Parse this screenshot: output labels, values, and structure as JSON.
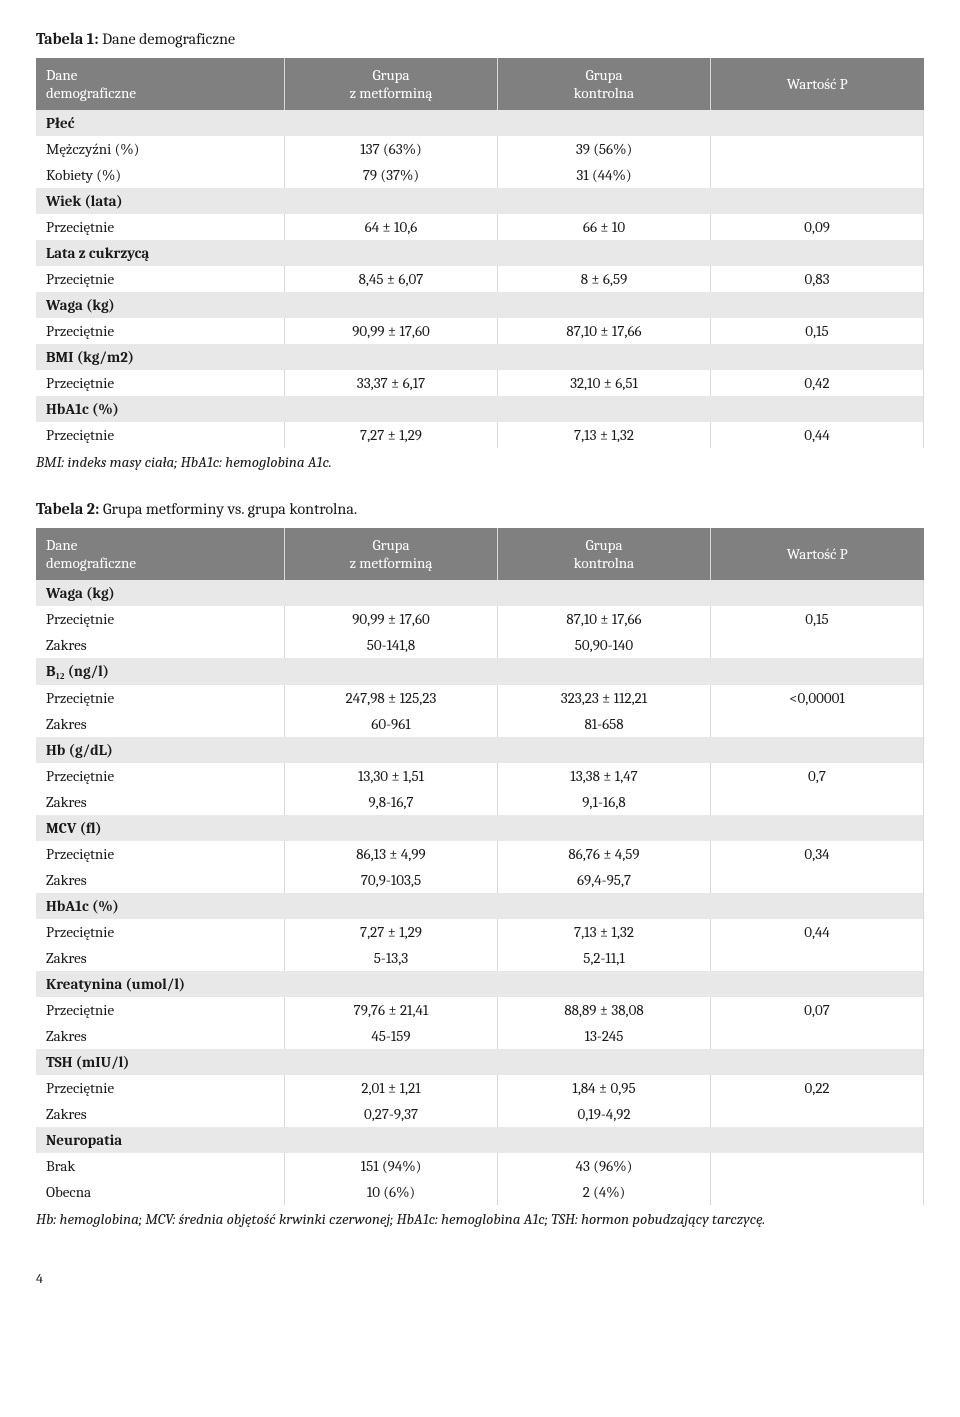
{
  "table1": {
    "title_bold": "Tabela 1:",
    "title_rest": " Dane demograficzne",
    "headers": [
      "Dane\ndemograficzne",
      "Grupa\nz metforminą",
      "Grupa\nkontrolna",
      "Wartość P"
    ],
    "rows": [
      {
        "type": "section",
        "c0": "Płeć"
      },
      {
        "type": "data",
        "c0": "Mężczyźni (%)",
        "c1": "137 (63%)",
        "c2": "39 (56%)",
        "c3": ""
      },
      {
        "type": "data",
        "c0": "Kobiety (%)",
        "c1": "79 (37%)",
        "c2": "31 (44%)",
        "c3": ""
      },
      {
        "type": "section",
        "c0": "Wiek (lata)"
      },
      {
        "type": "data",
        "c0": "Przeciętnie",
        "c1": "64 ± 10,6",
        "c2": "66 ± 10",
        "c3": "0,09"
      },
      {
        "type": "section",
        "c0": "Lata z cukrzycą"
      },
      {
        "type": "data",
        "c0": "Przeciętnie",
        "c1": "8,45 ± 6,07",
        "c2": "8 ± 6,59",
        "c3": "0,83"
      },
      {
        "type": "section",
        "c0": "Waga (kg)"
      },
      {
        "type": "data",
        "c0": "Przeciętnie",
        "c1": "90,99 ± 17,60",
        "c2": "87,10 ± 17,66",
        "c3": "0,15"
      },
      {
        "type": "section",
        "c0": "BMI (kg/m2)"
      },
      {
        "type": "data",
        "c0": "Przeciętnie",
        "c1": "33,37 ± 6,17",
        "c2": "32,10 ± 6,51",
        "c3": "0,42"
      },
      {
        "type": "section",
        "c0": "HbA1c (%)"
      },
      {
        "type": "data",
        "c0": "Przeciętnie",
        "c1": "7,27 ± 1,29",
        "c2": "7,13 ± 1,32",
        "c3": "0,44"
      }
    ],
    "footnote": "BMI: indeks masy ciała; HbA1c: hemoglobina A1c."
  },
  "table2": {
    "title_bold": "Tabela 2:",
    "title_rest": " Grupa metforminy vs. grupa kontrolna.",
    "headers": [
      "Dane\ndemograficzne",
      "Grupa\nz metforminą",
      "Grupa\nkontrolna",
      "Wartość P"
    ],
    "rows": [
      {
        "type": "section",
        "c0": "Waga (kg)"
      },
      {
        "type": "data",
        "c0": "Przeciętnie",
        "c1": "90,99 ± 17,60",
        "c2": "87,10 ± 17,66",
        "c3": "0,15"
      },
      {
        "type": "data",
        "c0": "Zakres",
        "c1": "50-141,8",
        "c2": "50,90-140",
        "c3": ""
      },
      {
        "type": "section",
        "c0": "B₁₂ (ng/l)"
      },
      {
        "type": "data",
        "c0": "Przeciętnie",
        "c1": "247,98 ± 125,23",
        "c2": "323,23 ± 112,21",
        "c3": "<0,00001"
      },
      {
        "type": "data",
        "c0": "Zakres",
        "c1": "60-961",
        "c2": "81-658",
        "c3": ""
      },
      {
        "type": "section",
        "c0": "Hb (g/dL)"
      },
      {
        "type": "data",
        "c0": "Przeciętnie",
        "c1": "13,30 ± 1,51",
        "c2": "13,38 ± 1,47",
        "c3": "0,7"
      },
      {
        "type": "data",
        "c0": "Zakres",
        "c1": "9,8-16,7",
        "c2": "9,1-16,8",
        "c3": ""
      },
      {
        "type": "section",
        "c0": "MCV (fl)"
      },
      {
        "type": "data",
        "c0": "Przeciętnie",
        "c1": "86,13 ± 4,99",
        "c2": "86,76 ± 4,59",
        "c3": "0,34"
      },
      {
        "type": "data",
        "c0": "Zakres",
        "c1": "70,9-103,5",
        "c2": "69,4-95,7",
        "c3": ""
      },
      {
        "type": "section",
        "c0": "HbA1c (%)"
      },
      {
        "type": "data",
        "c0": "Przeciętnie",
        "c1": "7,27 ± 1,29",
        "c2": "7,13 ± 1,32",
        "c3": "0,44"
      },
      {
        "type": "data",
        "c0": "Zakres",
        "c1": "5-13,3",
        "c2": "5,2-11,1",
        "c3": ""
      },
      {
        "type": "section",
        "c0": "Kreatynina (umol/l)"
      },
      {
        "type": "data",
        "c0": "Przeciętnie",
        "c1": "79,76 ± 21,41",
        "c2": "88,89 ± 38,08",
        "c3": "0,07"
      },
      {
        "type": "data",
        "c0": "Zakres",
        "c1": "45-159",
        "c2": "13-245",
        "c3": ""
      },
      {
        "type": "section",
        "c0": "TSH (mIU/l)"
      },
      {
        "type": "data",
        "c0": "Przeciętnie",
        "c1": "2,01 ± 1,21",
        "c2": "1,84 ± 0,95",
        "c3": "0,22"
      },
      {
        "type": "data",
        "c0": "Zakres",
        "c1": "0,27-9,37",
        "c2": "0,19-4,92",
        "c3": ""
      },
      {
        "type": "section",
        "c0": "Neuropatia"
      },
      {
        "type": "data",
        "c0": "Brak",
        "c1": "151 (94%)",
        "c2": "43 (96%)",
        "c3": ""
      },
      {
        "type": "data",
        "c0": "Obecna",
        "c1": "10 (6%)",
        "c2": "2 (4%)",
        "c3": ""
      }
    ],
    "footnote": "Hb: hemoglobina; MCV: średnia objętość krwinki czerwonej; HbA1c: hemoglobina A1c; TSH: hormon pobudzający tarczycę."
  },
  "page_number": "4"
}
